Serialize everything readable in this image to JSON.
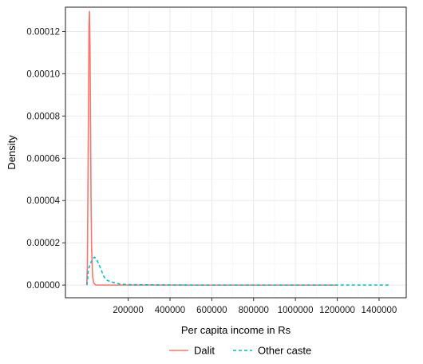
{
  "chart_data": {
    "type": "line",
    "xlabel": "Per capita income in Rs",
    "ylabel": "Density",
    "xlim": [
      -100000,
      1530000
    ],
    "ylim": [
      -6e-06,
      0.0001315
    ],
    "x_ticks": [
      200000,
      400000,
      600000,
      800000,
      1000000,
      1200000,
      1400000
    ],
    "x_tick_labels": [
      "200000",
      "400000",
      "600000",
      "800000",
      "1000000",
      "1200000",
      "1400000"
    ],
    "y_ticks": [
      0,
      2e-05,
      4e-05,
      6e-05,
      8e-05,
      0.0001,
      0.00012
    ],
    "y_tick_labels": [
      "0.00000",
      "0.00002",
      "0.00004",
      "0.00006",
      "0.00008",
      "0.00010",
      "0.00012"
    ],
    "grid": true,
    "legend_position": "bottom",
    "series": [
      {
        "name": "Dalit",
        "color": "#F8766D",
        "dash": "solid",
        "x": [
          2000,
          5000,
          10000,
          12500,
          15000,
          17500,
          20000,
          22500,
          25000,
          30000,
          35000,
          45000,
          60000,
          100000,
          300000,
          600000,
          900000,
          1200000
        ],
        "y": [
          0,
          1e-05,
          8e-05,
          0.000122,
          0.0001295,
          0.000112,
          7.6e-05,
          4e-05,
          1.8e-05,
          4e-06,
          1e-06,
          0,
          0,
          0,
          0,
          0,
          0,
          0
        ]
      },
      {
        "name": "Other caste",
        "color": "#00BFC4",
        "dash": "dashed",
        "x": [
          3000,
          10000,
          20000,
          30000,
          40000,
          50000,
          60000,
          70000,
          80000,
          90000,
          100000,
          120000,
          140000,
          160000,
          180000,
          200000,
          300000,
          500000,
          800000,
          1100000,
          1300000,
          1450000
        ],
        "y": [
          0,
          7.5e-06,
          1.03e-05,
          1.25e-05,
          1.32e-05,
          1.2e-05,
          9.8e-06,
          7.5e-06,
          4.8e-06,
          3e-06,
          2.2e-06,
          1.5e-06,
          9e-07,
          5e-07,
          3e-07,
          2e-07,
          1e-07,
          0,
          0,
          0,
          0,
          0
        ]
      }
    ]
  }
}
